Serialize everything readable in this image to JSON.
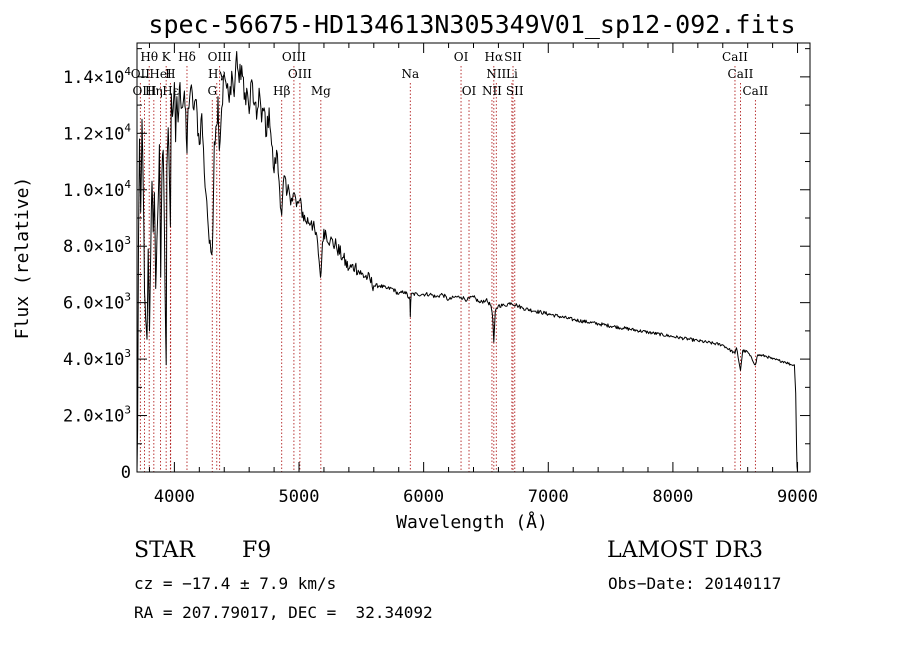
{
  "chart_data": {
    "type": "line",
    "title": "spec-56675-HD134613N305349V01_sp12-092.fits",
    "xlabel": "Wavelength (Å)",
    "ylabel": "Flux (relative)",
    "xlim": [
      3700,
      9100
    ],
    "ylim": [
      0,
      15200
    ],
    "x_ticks": [
      4000,
      5000,
      6000,
      7000,
      8000,
      9000
    ],
    "x_tick_labels": [
      "4000",
      "5000",
      "6000",
      "7000",
      "8000",
      "9000"
    ],
    "y_ticks": [
      {
        "value": 0,
        "mant": "0",
        "exp": ""
      },
      {
        "value": 2000,
        "mant": "2.0×10",
        "exp": "3"
      },
      {
        "value": 4000,
        "mant": "4.0×10",
        "exp": "3"
      },
      {
        "value": 6000,
        "mant": "6.0×10",
        "exp": "3"
      },
      {
        "value": 8000,
        "mant": "8.0×10",
        "exp": "3"
      },
      {
        "value": 10000,
        "mant": "1.0×10",
        "exp": "4"
      },
      {
        "value": 12000,
        "mant": "1.2×10",
        "exp": "4"
      },
      {
        "value": 14000,
        "mant": "1.4×10",
        "exp": "4"
      }
    ],
    "series": [
      {
        "name": "spectrum",
        "x": [
          3700,
          3705,
          3712,
          3720,
          3730,
          3740,
          3750,
          3760,
          3770,
          3780,
          3790,
          3800,
          3810,
          3820,
          3830,
          3840,
          3850,
          3860,
          3870,
          3880,
          3890,
          3900,
          3910,
          3920,
          3930,
          3934,
          3940,
          3950,
          3960,
          3968,
          3975,
          3985,
          4000,
          4010,
          4020,
          4030,
          4045,
          4060,
          4080,
          4101,
          4110,
          4130,
          4150,
          4170,
          4200,
          4220,
          4240,
          4260,
          4280,
          4300,
          4310,
          4320,
          4340,
          4350,
          4360,
          4380,
          4400,
          4420,
          4440,
          4460,
          4480,
          4500,
          4520,
          4540,
          4560,
          4580,
          4600,
          4620,
          4640,
          4660,
          4680,
          4700,
          4720,
          4740,
          4760,
          4780,
          4800,
          4820,
          4840,
          4861,
          4880,
          4900,
          4920,
          4940,
          4960,
          4980,
          5000,
          5050,
          5100,
          5150,
          5172,
          5183,
          5200,
          5250,
          5300,
          5350,
          5400,
          5450,
          5500,
          5550,
          5600,
          5650,
          5700,
          5750,
          5800,
          5850,
          5890,
          5893,
          5896,
          5900,
          5950,
          6000,
          6050,
          6100,
          6150,
          6200,
          6250,
          6300,
          6350,
          6400,
          6450,
          6500,
          6540,
          6555,
          6563,
          6575,
          6600,
          6650,
          6700,
          6750,
          6800,
          6900,
          7000,
          7200,
          7400,
          7600,
          7800,
          8000,
          8200,
          8400,
          8498,
          8510,
          8542,
          8560,
          8600,
          8662,
          8680,
          8750,
          8800,
          8850,
          8900,
          8950,
          8975,
          8985,
          8992,
          8996,
          9000
        ],
        "y": [
          0,
          1500,
          8200,
          11800,
          9200,
          12500,
          10200,
          6400,
          5400,
          4700,
          7900,
          5000,
          7700,
          10300,
          8500,
          9900,
          6500,
          8200,
          9600,
          11600,
          6900,
          10500,
          11400,
          8700,
          4800,
          3800,
          10800,
          12200,
          10400,
          8700,
          13400,
          12600,
          13800,
          11700,
          13300,
          12400,
          13800,
          12900,
          13500,
          11300,
          12900,
          13600,
          12900,
          13200,
          11600,
          12700,
          10600,
          9600,
          8100,
          7700,
          8800,
          11700,
          12300,
          13300,
          11400,
          12900,
          14100,
          13600,
          13100,
          14200,
          13300,
          14900,
          13800,
          14400,
          13200,
          13600,
          12700,
          13900,
          13000,
          12500,
          13600,
          12400,
          12900,
          11900,
          12900,
          11600,
          10600,
          11400,
          10300,
          9100,
          10500,
          9800,
          10000,
          9700,
          9900,
          9400,
          9600,
          8900,
          8900,
          8100,
          6900,
          7600,
          8600,
          8200,
          8000,
          7600,
          7200,
          7300,
          7000,
          6900,
          6600,
          6600,
          6500,
          6500,
          6300,
          6400,
          6100,
          5500,
          6000,
          6300,
          6300,
          6300,
          6300,
          6200,
          6300,
          6100,
          6200,
          6200,
          6100,
          6200,
          6000,
          6100,
          5900,
          5400,
          4600,
          5700,
          5900,
          5900,
          6000,
          5900,
          5800,
          5700,
          5600,
          5400,
          5250,
          5100,
          4950,
          4800,
          4650,
          4500,
          4200,
          4400,
          3600,
          4300,
          4250,
          3800,
          4150,
          4100,
          4000,
          3950,
          3900,
          3800,
          3800,
          2800,
          1000,
          200,
          0
        ]
      }
    ],
    "line_markers": [
      {
        "label": "Hθ",
        "wave": 3798,
        "row": 0
      },
      {
        "label": "K",
        "wave": 3934,
        "row": 0
      },
      {
        "label": "Hδ",
        "wave": 4101,
        "row": 0
      },
      {
        "label": "OIII",
        "wave": 4363,
        "row": 0
      },
      {
        "label": "OIII",
        "wave": 4959,
        "row": 0
      },
      {
        "label": "OI",
        "wave": 6300,
        "row": 0
      },
      {
        "label": "Hα",
        "wave": 6563,
        "row": 0
      },
      {
        "label": "SII",
        "wave": 6717,
        "row": 0
      },
      {
        "label": "CaII",
        "wave": 8498,
        "row": 0
      },
      {
        "label": "OII",
        "wave": 3727,
        "row": 1
      },
      {
        "label": "HeI",
        "wave": 3889,
        "row": 1
      },
      {
        "label": "H",
        "wave": 3968,
        "row": 1
      },
      {
        "label": "Hγ",
        "wave": 4340,
        "row": 1
      },
      {
        "label": "OIII",
        "wave": 5007,
        "row": 1
      },
      {
        "label": "Na",
        "wave": 5893,
        "row": 1
      },
      {
        "label": "NII",
        "wave": 6583,
        "row": 1
      },
      {
        "label": "Li",
        "wave": 6708,
        "row": 1
      },
      {
        "label": "CaII",
        "wave": 8542,
        "row": 1
      },
      {
        "label": "OIII",
        "wave": 3760,
        "row": 2
      },
      {
        "label": "Hη",
        "wave": 3835,
        "row": 2
      },
      {
        "label": "Hε",
        "wave": 3970,
        "row": 2
      },
      {
        "label": "G",
        "wave": 4304,
        "row": 2
      },
      {
        "label": "Hβ",
        "wave": 4861,
        "row": 2
      },
      {
        "label": "Mg",
        "wave": 5175,
        "row": 2
      },
      {
        "label": "OI",
        "wave": 6364,
        "row": 2
      },
      {
        "label": "NII",
        "wave": 6548,
        "row": 2
      },
      {
        "label": "SII",
        "wave": 6731,
        "row": 2
      },
      {
        "label": "CaII",
        "wave": 8662,
        "row": 2
      }
    ]
  },
  "info": {
    "object_class": "STAR",
    "subclass": "F9",
    "survey": "LAMOST DR3",
    "cz": "cz = −17.4 ± 7.9 km/s",
    "obs_date": "Obs−Date: 20140117",
    "radec": "RA = 207.79017, DEC =  32.34092"
  },
  "colors": {
    "line": "#000000",
    "marker": "#b22222",
    "background": "#ffffff"
  }
}
